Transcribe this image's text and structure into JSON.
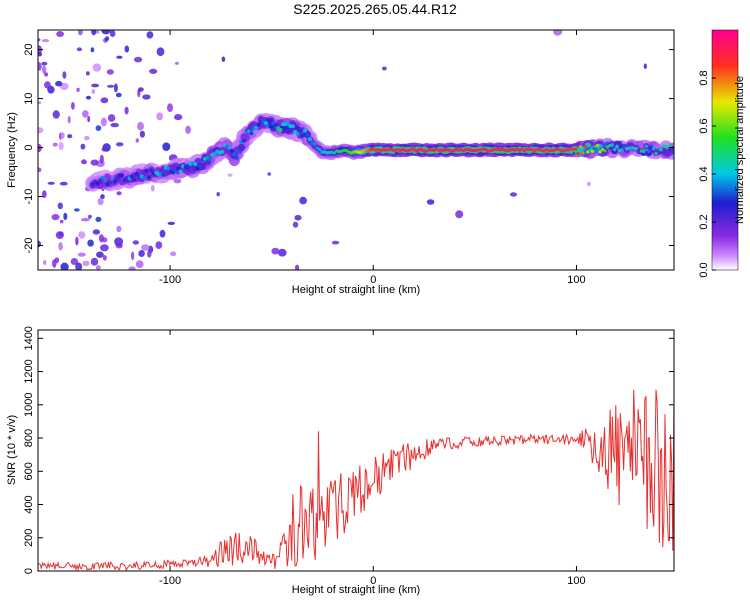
{
  "title": "S225.2025.265.05.44.R12",
  "colors": {
    "snr_line": "#e83030",
    "spectrum_background": "#ffffff",
    "noise_hue": "#8a2be2"
  },
  "chart_data": [
    {
      "type": "heatmap",
      "name": "spectrogram",
      "xlabel": "Height of straight line (km)",
      "ylabel": "Frequency (Hz)",
      "xlim": [
        -165,
        148
      ],
      "ylim": [
        -25,
        24
      ],
      "xticks": [
        -100,
        0,
        100
      ],
      "xtick_labels": [
        "-100",
        "0",
        "100"
      ],
      "yticks": [
        -20,
        -10,
        0,
        10,
        20
      ],
      "ytick_labels": [
        "-20",
        "-10",
        "0",
        "10",
        "20"
      ],
      "colorbar": {
        "label": "Normalized spectral amplitude",
        "range": [
          0.0,
          1.0
        ],
        "ticks": [
          0.0,
          0.2,
          0.4,
          0.6,
          0.8
        ],
        "tick_labels": [
          "0.0",
          "0.2",
          "0.4",
          "0.6",
          "0.8"
        ],
        "colormap": "rainbow (white-violet-blue-cyan-green-yellow-red-magenta)"
      },
      "ridge_frequency_hz": {
        "x": [
          -135,
          -120,
          -105,
          -95,
          -85,
          -78,
          -72,
          -68,
          -62,
          -55,
          -48,
          -40,
          -34,
          -30,
          -25,
          -20,
          -15,
          -10,
          0,
          20,
          50,
          100,
          120,
          140,
          148
        ],
        "y": [
          -7,
          -6,
          -5,
          -4.5,
          -3.5,
          -1,
          0,
          -2,
          3,
          5,
          4.5,
          4,
          3,
          1,
          -1,
          -1,
          -0.5,
          -1,
          -0.5,
          -0.5,
          -0.5,
          -0.5,
          0,
          -0.5,
          -0.5
        ]
      },
      "ridge_amplitude": {
        "x": [
          -135,
          -100,
          -80,
          -60,
          -40,
          -30,
          -20,
          -10,
          0,
          30,
          100,
          120,
          148
        ],
        "v": [
          0.3,
          0.35,
          0.4,
          0.35,
          0.45,
          0.35,
          0.45,
          0.6,
          0.9,
          0.95,
          0.9,
          0.45,
          0.4
        ]
      }
    },
    {
      "type": "line",
      "name": "snr",
      "xlabel": "Height of straight line (km)",
      "ylabel": "SNR (10 * v/v)",
      "xlim": [
        -165,
        148
      ],
      "ylim": [
        0,
        1450
      ],
      "xticks": [
        -100,
        0,
        100
      ],
      "xtick_labels": [
        "-100",
        "0",
        "100"
      ],
      "yticks": [
        0,
        200,
        400,
        600,
        800,
        1000,
        1200,
        1400
      ],
      "ytick_labels": [
        "0",
        "200",
        "400",
        "600",
        "800",
        "1000",
        "1200",
        "1400"
      ],
      "series": [
        {
          "color": "#e83030",
          "envelope_x": [
            -165,
            -120,
            -100,
            -90,
            -82,
            -75,
            -70,
            -65,
            -60,
            -55,
            -50,
            -45,
            -40,
            -35,
            -30,
            -27,
            -25,
            -22,
            -20,
            -15,
            -10,
            -5,
            0,
            10,
            20,
            30,
            50,
            80,
            100,
            105,
            110,
            120,
            130,
            140,
            148
          ],
          "envelope_mean": [
            30,
            30,
            40,
            45,
            60,
            100,
            130,
            200,
            150,
            80,
            50,
            90,
            200,
            300,
            250,
            400,
            300,
            350,
            350,
            400,
            450,
            500,
            550,
            650,
            700,
            760,
            780,
            790,
            790,
            800,
            760,
            720,
            650,
            600,
            600
          ],
          "envelope_spread": [
            20,
            25,
            25,
            25,
            40,
            80,
            120,
            160,
            110,
            50,
            50,
            100,
            180,
            260,
            230,
            500,
            260,
            200,
            220,
            200,
            180,
            160,
            140,
            100,
            80,
            40,
            30,
            30,
            30,
            60,
            200,
            350,
            450,
            500,
            500
          ]
        }
      ]
    }
  ]
}
